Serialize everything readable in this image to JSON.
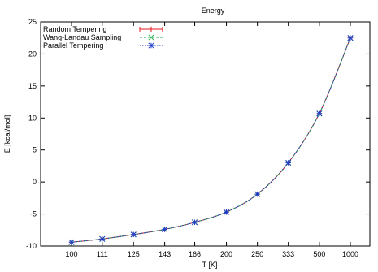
{
  "chart_data": {
    "type": "line",
    "title": "Energy",
    "xlabel": "T [K]",
    "ylabel": "E [kcal/mol]",
    "x_scale": "reciprocal",
    "categories": [
      "100",
      "111",
      "125",
      "143",
      "166",
      "200",
      "250",
      "333",
      "500",
      "1000"
    ],
    "x": [
      100,
      111,
      125,
      143,
      166,
      200,
      250,
      333,
      500,
      1000
    ],
    "ylim": [
      -10,
      25
    ],
    "yticks": [
      -10,
      -5,
      0,
      5,
      10,
      15,
      20,
      25
    ],
    "grid": false,
    "legend_position": "top-left",
    "series": [
      {
        "name": "Random Tempering",
        "color": "#e41a1c",
        "marker": "plus",
        "values": [
          -9.4,
          -8.9,
          -8.2,
          -7.4,
          -6.3,
          -4.7,
          -1.9,
          3.0,
          10.7,
          22.5
        ]
      },
      {
        "name": "Wang-Landau Sampling",
        "color": "#22b14c",
        "marker": "x",
        "values": [
          -9.4,
          -8.9,
          -8.2,
          -7.4,
          -6.3,
          -4.7,
          -1.9,
          3.0,
          10.7,
          22.5
        ]
      },
      {
        "name": "Parallel Tempering",
        "color": "#1f3ec7",
        "marker": "star",
        "values": [
          -9.4,
          -8.9,
          -8.2,
          -7.4,
          -6.3,
          -4.7,
          -1.9,
          3.0,
          10.7,
          22.5
        ]
      }
    ]
  }
}
